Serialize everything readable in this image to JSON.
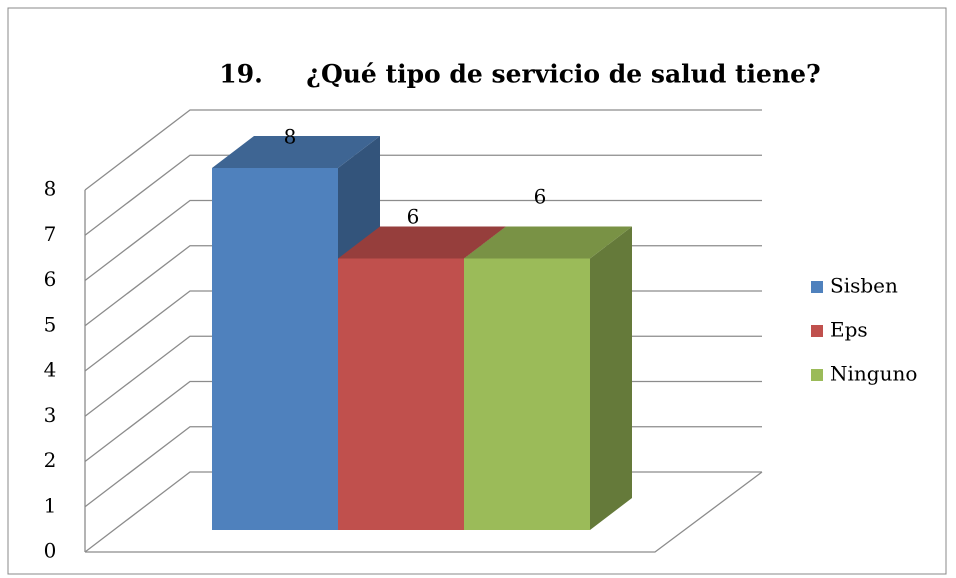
{
  "chart_data": {
    "type": "bar3d",
    "title": "19.     ¿Qué tipo de servicio de salud tiene?",
    "categories": [
      null
    ],
    "series": [
      {
        "name": "Sisben",
        "color": "#4f81bd",
        "values": [
          8
        ]
      },
      {
        "name": "Eps",
        "color": "#c0504d",
        "values": [
          6
        ]
      },
      {
        "name": "Ninguno",
        "color": "#9bbb59",
        "values": [
          6
        ]
      }
    ],
    "ylim": [
      0,
      8
    ],
    "yticks": [
      0,
      1,
      2,
      3,
      4,
      5,
      6,
      7,
      8
    ],
    "grid": true,
    "legend": "right"
  }
}
